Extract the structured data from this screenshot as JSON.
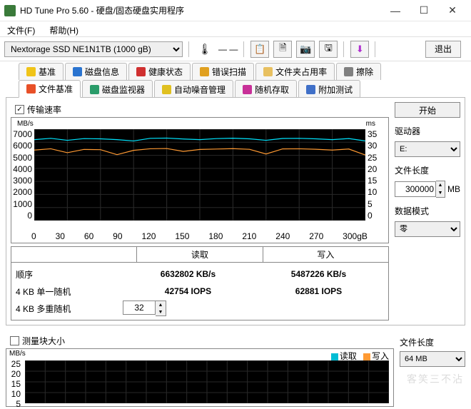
{
  "window": {
    "title": "HD Tune Pro 5.60 - 硬盘/固态硬盘实用程序"
  },
  "menu": {
    "file": "文件(F)",
    "help": "帮助(H)"
  },
  "toolbar": {
    "device": "Nextorage SSD NE1N1TB (1000 gB)",
    "temp_dash": "— —",
    "exit": "退出"
  },
  "tabs_top": {
    "benchmark": "基准",
    "diskinfo": "磁盘信息",
    "health": "健康状态",
    "errorscan": "错误扫描",
    "folder": "文件夹占用率",
    "erase": "擦除"
  },
  "tabs_bottom": {
    "filebench": "文件基准",
    "diskmonitor": "磁盘监视器",
    "aam": "自动噪音管理",
    "random": "随机存取",
    "extra": "附加测试"
  },
  "file_bench": {
    "transfer_rate_chk": "传输速率",
    "y_left_unit": "MB/s",
    "y_right_unit": "ms",
    "y_left": [
      "7000",
      "6000",
      "5000",
      "4000",
      "3000",
      "2000",
      "1000",
      "0"
    ],
    "y_right": [
      "35",
      "30",
      "25",
      "20",
      "15",
      "10",
      "5",
      "0"
    ],
    "x_ticks": [
      "0",
      "30",
      "60",
      "90",
      "120",
      "150",
      "180",
      "210",
      "240",
      "270",
      "300gB"
    ],
    "series": {
      "read_mbps": [
        6200,
        6300,
        6150,
        6280,
        6260,
        6200,
        6100,
        6300,
        6320,
        6250,
        6200,
        6280,
        6310,
        6260,
        6150,
        6290,
        6300,
        6260,
        6200,
        6280,
        6100
      ],
      "write_mbps": [
        5400,
        5500,
        5200,
        5450,
        5430,
        5050,
        5380,
        5500,
        5520,
        5300,
        5450,
        5480,
        5510,
        5460,
        5100,
        5490,
        5500,
        5460,
        5400,
        5480,
        5020
      ]
    },
    "colors": {
      "read": "#00e5ff",
      "write": "#ff9a33",
      "bg": "#000000",
      "grid": "#282828"
    },
    "cols": {
      "read": "读取",
      "write": "写入"
    },
    "rows": {
      "seq_label": "顺序",
      "seq_read": "6632802 KB/s",
      "seq_write": "5487226 KB/s",
      "r4k_single_label": "4 KB 单一随机",
      "r4k_single_read": "42754 IOPS",
      "r4k_single_write": "62881 IOPS",
      "r4k_multi_label": "4 KB 多重随机",
      "r4k_multi_value": "32"
    }
  },
  "side": {
    "start": "开始",
    "drive_label": "驱动器",
    "drive": "E:",
    "filelen_label": "文件长度",
    "filelen": "300000",
    "filelen_unit": "MB",
    "datamode_label": "数据模式",
    "datamode": "零"
  },
  "block": {
    "chk": "测量块大小",
    "unit": "MB/s",
    "y": [
      "25",
      "20",
      "15",
      "10",
      "5"
    ],
    "legend_read": "读取",
    "legend_write": "写入",
    "filelen_label": "文件长度",
    "filelen": "64 MB"
  },
  "watermark": "客笑三不沾"
}
